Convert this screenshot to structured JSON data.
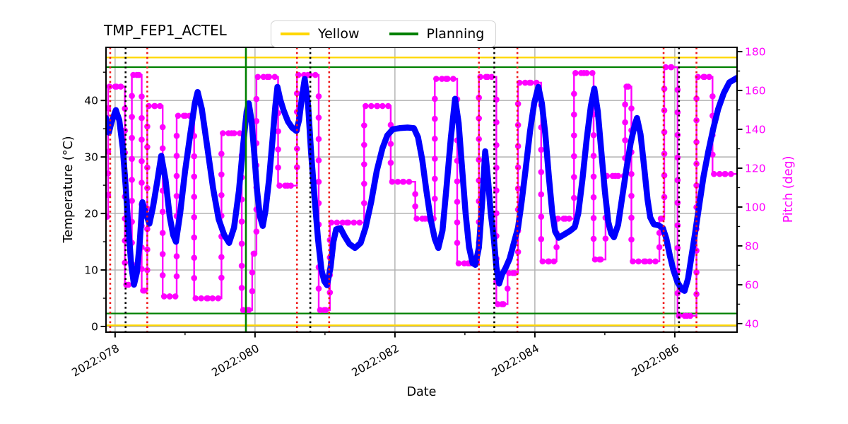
{
  "chart_data": {
    "type": "line",
    "title": "TMP_FEP1_ACTEL",
    "xlabel": "Date",
    "ylabel_left": "Temperature (°C)",
    "ylabel_right": "Pitch (deg)",
    "grid": true,
    "legend_position": "top-center",
    "legend_items": [
      {
        "label": "Yellow",
        "color": "#FFD700"
      },
      {
        "label": "Planning",
        "color": "#008000"
      }
    ],
    "xlim": [
      77.87,
      86.89
    ],
    "ylim_left": [
      -1.0,
      49.4
    ],
    "ylim_right": [
      35.6,
      182.2
    ],
    "x_major_ticks": [
      {
        "value": 78,
        "label": "2022:078"
      },
      {
        "value": 80,
        "label": "2022:080"
      },
      {
        "value": 82,
        "label": "2022:082"
      },
      {
        "value": 84,
        "label": "2022:084"
      },
      {
        "value": 86,
        "label": "2022:086"
      }
    ],
    "x_minor_ticks": [
      79,
      81,
      83,
      85
    ],
    "y_left_major_ticks": [
      0,
      10,
      20,
      30,
      40
    ],
    "y_left_minor_ticks": [
      5,
      15,
      25,
      35,
      45
    ],
    "y_right_major_ticks": [
      40,
      60,
      80,
      100,
      120,
      140,
      160,
      180
    ],
    "y_right_minor_ticks": [
      50,
      70,
      90,
      110,
      130,
      150,
      170
    ],
    "limit_lines": [
      {
        "name": "yellow-high",
        "value": 47.6,
        "color": "#FFD700"
      },
      {
        "name": "yellow-low",
        "value": 0.2,
        "color": "#FFD700"
      },
      {
        "name": "planning-high",
        "value": 45.9,
        "color": "#008000"
      },
      {
        "name": "planning-low",
        "value": 2.3,
        "color": "#008000"
      }
    ],
    "event_lines": [
      {
        "day": 77.93,
        "color": "#f01515",
        "style": "dotted"
      },
      {
        "day": 78.15,
        "color": "#000000",
        "style": "dotted"
      },
      {
        "day": 78.46,
        "color": "#f01515",
        "style": "dotted"
      },
      {
        "day": 79.87,
        "color": "#008000",
        "style": "solid"
      },
      {
        "day": 80.6,
        "color": "#f01515",
        "style": "dotted"
      },
      {
        "day": 80.79,
        "color": "#000000",
        "style": "dotted"
      },
      {
        "day": 81.06,
        "color": "#f01515",
        "style": "dotted"
      },
      {
        "day": 83.2,
        "color": "#f01515",
        "style": "dotted"
      },
      {
        "day": 83.42,
        "color": "#000000",
        "style": "dotted"
      },
      {
        "day": 83.75,
        "color": "#f01515",
        "style": "dotted"
      },
      {
        "day": 85.84,
        "color": "#f01515",
        "style": "dotted"
      },
      {
        "day": 86.06,
        "color": "#000000",
        "style": "dotted"
      },
      {
        "day": 86.31,
        "color": "#f01515",
        "style": "dotted"
      }
    ],
    "series": [
      {
        "name": "temperature",
        "axis": "left",
        "color": "#0000ff",
        "style": "thick-line",
        "points": [
          [
            77.87,
            36.9
          ],
          [
            77.91,
            34.3
          ],
          [
            77.95,
            36.2
          ],
          [
            78.01,
            38.3
          ],
          [
            78.06,
            36.5
          ],
          [
            78.11,
            31.5
          ],
          [
            78.15,
            25.0
          ],
          [
            78.19,
            17.5
          ],
          [
            78.23,
            11.0
          ],
          [
            78.27,
            7.4
          ],
          [
            78.31,
            9.5
          ],
          [
            78.35,
            14.5
          ],
          [
            78.39,
            22.0
          ],
          [
            78.44,
            20.0
          ],
          [
            78.49,
            18.2
          ],
          [
            78.54,
            21.0
          ],
          [
            78.6,
            25.5
          ],
          [
            78.66,
            30.2
          ],
          [
            78.72,
            26.0
          ],
          [
            78.78,
            19.5
          ],
          [
            78.83,
            16.2
          ],
          [
            78.87,
            15.0
          ],
          [
            78.93,
            20.0
          ],
          [
            79.0,
            27.5
          ],
          [
            79.08,
            34.5
          ],
          [
            79.14,
            39.5
          ],
          [
            79.18,
            41.5
          ],
          [
            79.24,
            38.5
          ],
          [
            79.32,
            31.5
          ],
          [
            79.4,
            24.5
          ],
          [
            79.48,
            19.0
          ],
          [
            79.56,
            16.2
          ],
          [
            79.63,
            14.8
          ],
          [
            79.7,
            17.5
          ],
          [
            79.77,
            24.0
          ],
          [
            79.83,
            32.0
          ],
          [
            79.88,
            38.0
          ],
          [
            79.91,
            39.5
          ],
          [
            79.95,
            36.5
          ],
          [
            79.99,
            30.5
          ],
          [
            80.03,
            24.0
          ],
          [
            80.07,
            19.5
          ],
          [
            80.11,
            17.8
          ],
          [
            80.15,
            20.5
          ],
          [
            80.2,
            26.0
          ],
          [
            80.25,
            33.0
          ],
          [
            80.29,
            39.0
          ],
          [
            80.32,
            42.4
          ],
          [
            80.36,
            40.2
          ],
          [
            80.41,
            38.2
          ],
          [
            80.47,
            36.3
          ],
          [
            80.53,
            35.2
          ],
          [
            80.59,
            34.6
          ],
          [
            80.63,
            36.5
          ],
          [
            80.67,
            40.5
          ],
          [
            80.71,
            43.8
          ],
          [
            80.76,
            39.0
          ],
          [
            80.8,
            31.0
          ],
          [
            80.85,
            23.0
          ],
          [
            80.9,
            15.5
          ],
          [
            80.95,
            10.0
          ],
          [
            80.99,
            8.0
          ],
          [
            81.03,
            7.3
          ],
          [
            81.08,
            10.5
          ],
          [
            81.12,
            15.0
          ],
          [
            81.16,
            17.2
          ],
          [
            81.22,
            17.4
          ],
          [
            81.28,
            16.0
          ],
          [
            81.35,
            14.6
          ],
          [
            81.43,
            13.9
          ],
          [
            81.51,
            14.8
          ],
          [
            81.58,
            17.5
          ],
          [
            81.66,
            22.0
          ],
          [
            81.74,
            27.5
          ],
          [
            81.82,
            31.5
          ],
          [
            81.89,
            33.8
          ],
          [
            81.97,
            34.9
          ],
          [
            82.07,
            35.1
          ],
          [
            82.18,
            35.2
          ],
          [
            82.27,
            35.1
          ],
          [
            82.33,
            33.5
          ],
          [
            82.39,
            29.5
          ],
          [
            82.45,
            24.0
          ],
          [
            82.51,
            19.0
          ],
          [
            82.57,
            15.5
          ],
          [
            82.62,
            13.9
          ],
          [
            82.68,
            17.0
          ],
          [
            82.74,
            25.0
          ],
          [
            82.8,
            33.5
          ],
          [
            82.86,
            40.3
          ],
          [
            82.91,
            36.0
          ],
          [
            82.96,
            28.0
          ],
          [
            83.01,
            20.0
          ],
          [
            83.06,
            14.0
          ],
          [
            83.11,
            11.2
          ],
          [
            83.15,
            10.9
          ],
          [
            83.2,
            14.0
          ],
          [
            83.25,
            22.5
          ],
          [
            83.29,
            31.0
          ],
          [
            83.33,
            26.0
          ],
          [
            83.37,
            20.0
          ],
          [
            83.41,
            16.0
          ],
          [
            83.45,
            10.5
          ],
          [
            83.49,
            7.6
          ],
          [
            83.53,
            9.2
          ],
          [
            83.58,
            10.3
          ],
          [
            83.64,
            12.0
          ],
          [
            83.7,
            14.8
          ],
          [
            83.76,
            17.5
          ],
          [
            83.81,
            22.0
          ],
          [
            83.87,
            28.0
          ],
          [
            83.93,
            34.5
          ],
          [
            83.99,
            39.5
          ],
          [
            84.05,
            42.4
          ],
          [
            84.1,
            39.5
          ],
          [
            84.15,
            34.0
          ],
          [
            84.2,
            26.5
          ],
          [
            84.25,
            20.0
          ],
          [
            84.29,
            16.8
          ],
          [
            84.34,
            15.7
          ],
          [
            84.42,
            16.3
          ],
          [
            84.5,
            16.9
          ],
          [
            84.57,
            17.6
          ],
          [
            84.62,
            20.0
          ],
          [
            84.68,
            26.0
          ],
          [
            84.74,
            33.0
          ],
          [
            84.8,
            39.0
          ],
          [
            84.85,
            42.1
          ],
          [
            84.9,
            38.0
          ],
          [
            84.95,
            31.0
          ],
          [
            85.0,
            24.0
          ],
          [
            85.05,
            18.5
          ],
          [
            85.09,
            16.5
          ],
          [
            85.13,
            15.8
          ],
          [
            85.19,
            18.0
          ],
          [
            85.25,
            23.0
          ],
          [
            85.31,
            28.0
          ],
          [
            85.37,
            32.5
          ],
          [
            85.43,
            35.8
          ],
          [
            85.46,
            36.9
          ],
          [
            85.51,
            34.0
          ],
          [
            85.56,
            28.5
          ],
          [
            85.61,
            22.5
          ],
          [
            85.65,
            19.3
          ],
          [
            85.7,
            18.1
          ],
          [
            85.77,
            17.9
          ],
          [
            85.83,
            17.4
          ],
          [
            85.88,
            15.5
          ],
          [
            85.93,
            12.5
          ],
          [
            85.98,
            10.0
          ],
          [
            86.04,
            7.8
          ],
          [
            86.1,
            6.6
          ],
          [
            86.14,
            6.3
          ],
          [
            86.19,
            8.5
          ],
          [
            86.24,
            12.5
          ],
          [
            86.29,
            16.5
          ],
          [
            86.35,
            21.5
          ],
          [
            86.41,
            26.5
          ],
          [
            86.48,
            31.0
          ],
          [
            86.55,
            35.0
          ],
          [
            86.62,
            38.5
          ],
          [
            86.7,
            41.3
          ],
          [
            86.78,
            43.2
          ],
          [
            86.89,
            44.0
          ]
        ]
      },
      {
        "name": "pitch",
        "axis": "right",
        "color": "#ff00ff",
        "style": "steps-with-markers",
        "points": [
          [
            77.87,
            95
          ],
          [
            77.9,
            162
          ],
          [
            78.14,
            60
          ],
          [
            78.24,
            168
          ],
          [
            78.38,
            57
          ],
          [
            78.46,
            152
          ],
          [
            78.68,
            54
          ],
          [
            78.88,
            147
          ],
          [
            79.13,
            53
          ],
          [
            79.52,
            138
          ],
          [
            79.81,
            47
          ],
          [
            79.96,
            76
          ],
          [
            80.02,
            167
          ],
          [
            80.33,
            111
          ],
          [
            80.6,
            168
          ],
          [
            80.91,
            47
          ],
          [
            81.07,
            92
          ],
          [
            81.56,
            152
          ],
          [
            81.94,
            113
          ],
          [
            82.29,
            94
          ],
          [
            82.57,
            166
          ],
          [
            82.89,
            71
          ],
          [
            83.2,
            167
          ],
          [
            83.45,
            50
          ],
          [
            83.61,
            66
          ],
          [
            83.76,
            164
          ],
          [
            84.09,
            72
          ],
          [
            84.31,
            94
          ],
          [
            84.56,
            169
          ],
          [
            84.84,
            73
          ],
          [
            85.01,
            116
          ],
          [
            85.29,
            162
          ],
          [
            85.38,
            72
          ],
          [
            85.78,
            94
          ],
          [
            85.85,
            172
          ],
          [
            86.04,
            44
          ],
          [
            86.31,
            167
          ],
          [
            86.54,
            117
          ]
        ]
      }
    ],
    "colors": {
      "temperature": "#0000ff",
      "pitch": "#ff00ff",
      "yellow_limit": "#FFD700",
      "planning_limit": "#008000",
      "event_red": "#f01515",
      "event_black": "#000000",
      "grid": "#b0b0b0",
      "spine": "#000000"
    }
  }
}
